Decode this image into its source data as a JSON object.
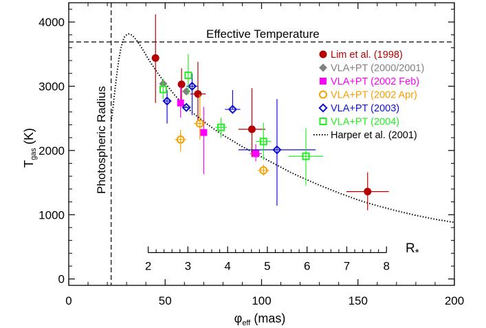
{
  "chart_data": {
    "type": "scatter",
    "xlabel_main": "φ",
    "xlabel_sub": "eff",
    "xlabel_rest": " (mas)",
    "ylabel_main": "T",
    "ylabel_sub": "gas",
    "ylabel_rest": " (K)",
    "xlim": [
      0,
      200
    ],
    "ylim": [
      -100,
      4300
    ],
    "x_ticks": [
      0,
      50,
      100,
      150,
      200
    ],
    "y_ticks": [
      0,
      1000,
      2000,
      3000,
      4000
    ],
    "grid": false,
    "legend_placement": "top-right",
    "annotations": {
      "effective_temperature": {
        "text": "Effective Temperature",
        "value": 3690
      },
      "photospheric_radius": {
        "text": "Photospheric Radius",
        "value": 22
      }
    },
    "secondary_axis": {
      "label": "R",
      "label_sub": "*",
      "ticks": [
        2,
        3,
        4,
        5,
        6,
        7,
        8
      ],
      "scale_mas_per_rstar": 20.6,
      "at_y": 410
    },
    "series": [
      {
        "name": "Lim et al. (1998)",
        "color": "#b50000",
        "marker": "circle",
        "points": [
          {
            "x": 45,
            "y": 3440,
            "yerr_lo": 700,
            "yerr_hi": 680,
            "xerr": 0
          },
          {
            "x": 58.5,
            "y": 3030,
            "yerr_lo": 280,
            "yerr_hi": 250,
            "xerr": 0
          },
          {
            "x": 67,
            "y": 2880,
            "yerr_lo": 430,
            "yerr_hi": 500,
            "xerr": 4
          },
          {
            "x": 95,
            "y": 2330,
            "yerr_lo": 430,
            "yerr_hi": 640,
            "xerr": 7
          },
          {
            "x": 155,
            "y": 1360,
            "yerr_lo": 290,
            "yerr_hi": 300,
            "xerr": 11
          }
        ]
      },
      {
        "name": "VLA+PT (2000/2001)",
        "color": "#808080",
        "marker": "diamond",
        "points": [
          {
            "x": 49,
            "y": 3040,
            "yerr_lo": 0,
            "yerr_hi": 0,
            "xerr": 0
          },
          {
            "x": 61,
            "y": 2920,
            "yerr_lo": 0,
            "yerr_hi": 0,
            "xerr": 0
          }
        ]
      },
      {
        "name": "VLA+PT (2002 Feb)",
        "color": "#ff00ff",
        "marker": "square",
        "points": [
          {
            "x": 58,
            "y": 2740,
            "yerr_lo": 230,
            "yerr_hi": 250,
            "xerr": 0
          },
          {
            "x": 70,
            "y": 2280,
            "yerr_lo": 650,
            "yerr_hi": 400,
            "xerr": 0
          },
          {
            "x": 97,
            "y": 1950,
            "yerr_lo": 120,
            "yerr_hi": 150,
            "xerr": 3
          }
        ]
      },
      {
        "name": "VLA+PT (2002 Apr)",
        "color": "#f5a000",
        "marker": "open-circle",
        "points": [
          {
            "x": 58,
            "y": 2170,
            "yerr_lo": 190,
            "yerr_hi": 150,
            "xerr": 3
          },
          {
            "x": 68,
            "y": 2420,
            "yerr_lo": 250,
            "yerr_hi": 450,
            "xerr": 3
          },
          {
            "x": 101,
            "y": 1690,
            "yerr_lo": 80,
            "yerr_hi": 90,
            "xerr": 3
          }
        ]
      },
      {
        "name": "VLA+PT (2003)",
        "color": "#1010d0",
        "marker": "open-diamond",
        "points": [
          {
            "x": 51,
            "y": 2770,
            "yerr_lo": 350,
            "yerr_hi": 170,
            "xerr": 2
          },
          {
            "x": 61,
            "y": 2670,
            "yerr_lo": 0,
            "yerr_hi": 0,
            "xerr": 2
          },
          {
            "x": 64,
            "y": 3000,
            "yerr_lo": 450,
            "yerr_hi": 200,
            "xerr": 3
          },
          {
            "x": 85,
            "y": 2640,
            "yerr_lo": 0,
            "yerr_hi": 300,
            "xerr": 4
          },
          {
            "x": 108,
            "y": 2010,
            "yerr_lo": 870,
            "yerr_hi": 790,
            "xerr": 20
          }
        ]
      },
      {
        "name": "VLA+PT (2004)",
        "color": "#22ee22",
        "marker": "open-square",
        "points": [
          {
            "x": 49,
            "y": 2950,
            "yerr_lo": 150,
            "yerr_hi": 170,
            "xerr": 0
          },
          {
            "x": 62,
            "y": 3170,
            "yerr_lo": 300,
            "yerr_hi": 330,
            "xerr": 0
          },
          {
            "x": 79,
            "y": 2360,
            "yerr_lo": 160,
            "yerr_hi": 150,
            "xerr": 3
          },
          {
            "x": 101,
            "y": 2140,
            "yerr_lo": 290,
            "yerr_hi": 290,
            "xerr": 4
          },
          {
            "x": 123,
            "y": 1910,
            "yerr_lo": 450,
            "yerr_hi": 440,
            "xerr": 9
          }
        ]
      }
    ],
    "model": {
      "name": "Harper et al. (2001)",
      "style": "dotted",
      "color": "#000000",
      "x": [
        22,
        23,
        24,
        25,
        26,
        27,
        28,
        29,
        30,
        31,
        32,
        33,
        34,
        36,
        38,
        40,
        42,
        44,
        46,
        48,
        50,
        55,
        60,
        65,
        70,
        75,
        80,
        85,
        90,
        95,
        100,
        105,
        110,
        115,
        120,
        130,
        140,
        150,
        160,
        170,
        180,
        190,
        200
      ],
      "y": [
        2450,
        2680,
        2950,
        3200,
        3420,
        3580,
        3700,
        3770,
        3800,
        3815,
        3810,
        3790,
        3760,
        3680,
        3590,
        3490,
        3390,
        3300,
        3210,
        3130,
        3050,
        2860,
        2700,
        2570,
        2450,
        2340,
        2240,
        2150,
        2060,
        1980,
        1900,
        1820,
        1740,
        1660,
        1590,
        1460,
        1340,
        1230,
        1140,
        1060,
        990,
        930,
        880
      ]
    }
  }
}
